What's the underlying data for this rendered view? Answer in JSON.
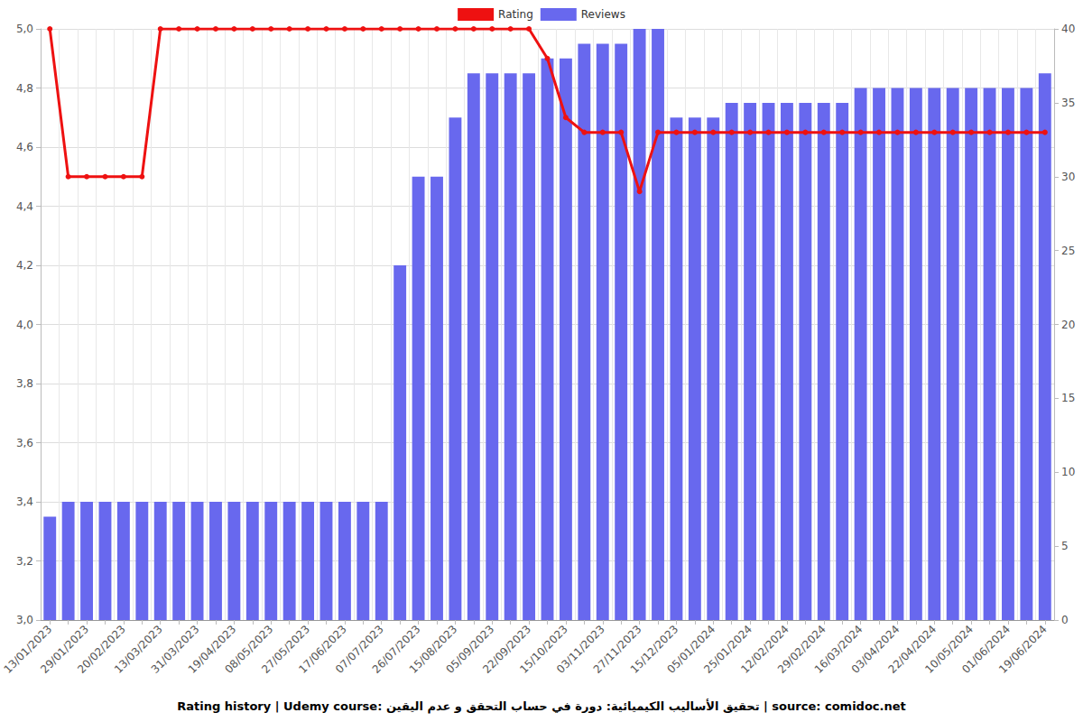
{
  "chart_data": {
    "type": "bar",
    "title": "Rating history | Udemy course: تحقيق الأساليب الكيميائية: دورة في حساب التحقق و عدم اليقين | source: comidoc.net",
    "categories": [
      "13/01/2023",
      null,
      "29/01/2023",
      null,
      "20/02/2023",
      null,
      "13/03/2023",
      null,
      "31/03/2023",
      null,
      "19/04/2023",
      null,
      "08/05/2023",
      null,
      "27/05/2023",
      null,
      "17/06/2023",
      null,
      "07/07/2023",
      null,
      "26/07/2023",
      null,
      "15/08/2023",
      null,
      "05/09/2023",
      null,
      "22/09/2023",
      null,
      "15/10/2023",
      null,
      "03/11/2023",
      null,
      "27/11/2023",
      null,
      "15/12/2023",
      null,
      "05/01/2024",
      null,
      "25/01/2024",
      null,
      "12/02/2024",
      null,
      "29/02/2024",
      null,
      "16/03/2024",
      null,
      "03/04/2024",
      null,
      "22/04/2024",
      null,
      "10/05/2024",
      null,
      "01/06/2024",
      null,
      "19/06/2024"
    ],
    "series": [
      {
        "name": "Rating",
        "type": "line",
        "color": "#ee1111",
        "marker": "circle",
        "values": [
          5.0,
          4.5,
          4.5,
          4.5,
          4.5,
          4.5,
          5.0,
          5.0,
          5.0,
          5.0,
          5.0,
          5.0,
          5.0,
          5.0,
          5.0,
          5.0,
          5.0,
          5.0,
          5.0,
          5.0,
          5.0,
          5.0,
          5.0,
          5.0,
          5.0,
          5.0,
          5.0,
          4.9,
          4.7,
          4.65,
          4.65,
          4.65,
          4.45,
          4.65,
          4.65,
          4.65,
          4.65,
          4.65,
          4.65,
          4.65,
          4.65,
          4.65,
          4.65,
          4.65,
          4.65,
          4.65,
          4.65,
          4.65,
          4.65,
          4.65,
          4.65,
          4.65,
          4.65,
          4.65,
          4.65
        ]
      },
      {
        "name": "Reviews",
        "type": "bar",
        "color": "#6868ee",
        "axis": "y2",
        "values": [
          7,
          8,
          8,
          8,
          8,
          8,
          8,
          8,
          8,
          8,
          8,
          8,
          8,
          8,
          8,
          8,
          8,
          8,
          8,
          24,
          30,
          30,
          34,
          37,
          37,
          37,
          37,
          38,
          38,
          39,
          39,
          39,
          40,
          40,
          34,
          34,
          34,
          35,
          35,
          35,
          35,
          35,
          35,
          35,
          36,
          36,
          36,
          36,
          36,
          36,
          36,
          36,
          36,
          36,
          37
        ]
      }
    ],
    "ylim": [
      3.0,
      5.0
    ],
    "yticks": [
      {
        "value": 3.0,
        "label": "3,0"
      },
      {
        "value": 3.2,
        "label": "3,2"
      },
      {
        "value": 3.4,
        "label": "3,4"
      },
      {
        "value": 3.6,
        "label": "3,6"
      },
      {
        "value": 3.8,
        "label": "3,8"
      },
      {
        "value": 4.0,
        "label": "4,0"
      },
      {
        "value": 4.2,
        "label": "4,2"
      },
      {
        "value": 4.4,
        "label": "4,4"
      },
      {
        "value": 4.6,
        "label": "4,6"
      },
      {
        "value": 4.8,
        "label": "4,8"
      },
      {
        "value": 5.0,
        "label": "5,0"
      }
    ],
    "y2lim": [
      0,
      40
    ],
    "y2ticks": [
      0,
      5,
      10,
      15,
      20,
      25,
      30,
      35,
      40
    ],
    "grid": true,
    "legend": "top"
  }
}
